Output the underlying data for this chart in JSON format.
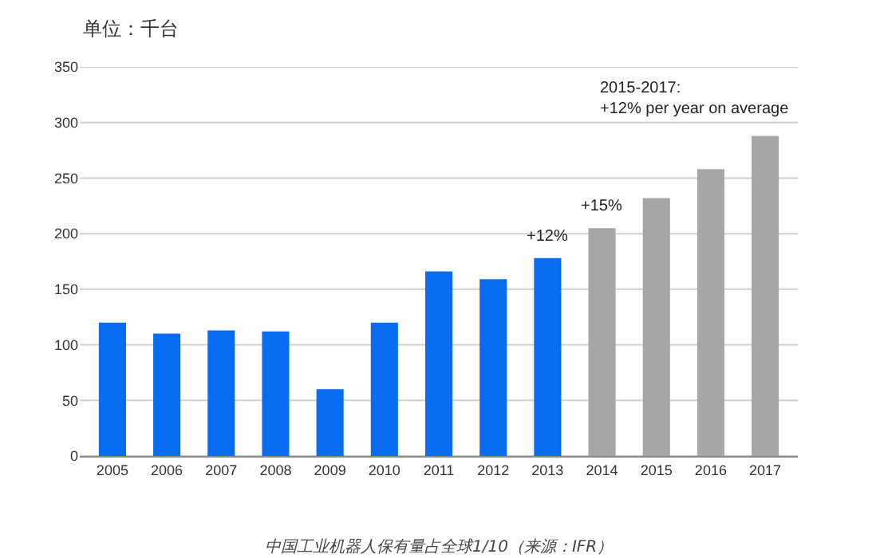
{
  "chart_data": {
    "type": "bar",
    "ylabel": "单位：千台",
    "categories": [
      "2005",
      "2006",
      "2007",
      "2008",
      "2009",
      "2010",
      "2011",
      "2012",
      "2013",
      "2014",
      "2015",
      "2016",
      "2017"
    ],
    "values": [
      120,
      110,
      113,
      112,
      60,
      120,
      166,
      159,
      178,
      205,
      232,
      258,
      288
    ],
    "colors": [
      "#0a6cf0",
      "#0a6cf0",
      "#0a6cf0",
      "#0a6cf0",
      "#0a6cf0",
      "#0a6cf0",
      "#0a6cf0",
      "#0a6cf0",
      "#0a6cf0",
      "#a6a6a6",
      "#a6a6a6",
      "#a6a6a6",
      "#a6a6a6"
    ],
    "ylim": [
      0,
      350
    ],
    "yticks": [
      0,
      50,
      100,
      150,
      200,
      250,
      300,
      350
    ],
    "grid": "y",
    "annotations": [
      {
        "text": "+12%",
        "x": "2013",
        "y": 178
      },
      {
        "text": "+15%",
        "x": "2014",
        "y": 205
      },
      "2015-2017:\n+12% per year on average",
      "中国工业机器人保有量占全球1/10（来源：IFR）"
    ]
  }
}
